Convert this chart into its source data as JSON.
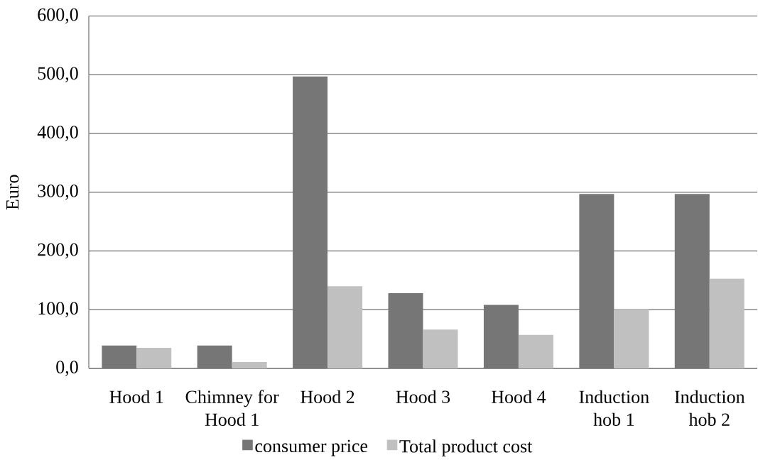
{
  "chart_data": {
    "type": "bar",
    "ylabel": "Euro",
    "categories": [
      "Hood 1",
      "Chimney for Hood 1",
      "Hood 2",
      "Hood 3",
      "Hood 4",
      "Induction hob 1",
      "Induction hob 2"
    ],
    "series": [
      {
        "name": "consumer price",
        "color": "#767676",
        "values": [
          39,
          39,
          497,
          128,
          108,
          297,
          297
        ]
      },
      {
        "name": "Total product cost",
        "color": "#c0c0c0",
        "values": [
          35,
          11,
          140,
          66,
          57,
          100,
          153
        ]
      }
    ],
    "ylim": [
      0,
      600
    ],
    "yticks": [
      {
        "value": 0,
        "label": "0,0"
      },
      {
        "value": 100,
        "label": "100,0"
      },
      {
        "value": 200,
        "label": "200,0"
      },
      {
        "value": 300,
        "label": "300,0"
      },
      {
        "value": 400,
        "label": "400,0"
      },
      {
        "value": 500,
        "label": "500,0"
      },
      {
        "value": 600,
        "label": "600,0"
      }
    ],
    "grid": "y",
    "legend": "bottom"
  }
}
